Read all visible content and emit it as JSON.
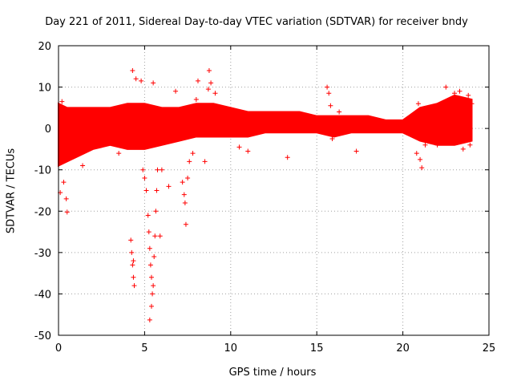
{
  "chart_data": {
    "type": "scatter",
    "title": "Day 221 of 2011, Sidereal Day-to-day VTEC variation (SDTVAR) for receiver bndy",
    "xlabel": "GPS time / hours",
    "ylabel": "SDTVAR / TECUs",
    "xlim": [
      0,
      25
    ],
    "ylim": [
      -50,
      20
    ],
    "xticks": [
      "0",
      "5",
      "10",
      "15",
      "20",
      "25"
    ],
    "yticks": [
      "20",
      "10",
      "0",
      "-10",
      "-20",
      "-30",
      "-40",
      "-50"
    ],
    "grid": true,
    "marker": "+",
    "color": "#ff0000",
    "series": [
      {
        "name": "SDTVAR",
        "band": [
          {
            "x": 0.0,
            "lo": -9,
            "hi": 6
          },
          {
            "x": 0.5,
            "lo": -8,
            "hi": 5
          },
          {
            "x": 1.0,
            "lo": -7,
            "hi": 5
          },
          {
            "x": 2.0,
            "lo": -5,
            "hi": 5
          },
          {
            "x": 3.0,
            "lo": -4,
            "hi": 5
          },
          {
            "x": 4.0,
            "lo": -5,
            "hi": 6
          },
          {
            "x": 5.0,
            "lo": -5,
            "hi": 6
          },
          {
            "x": 6.0,
            "lo": -4,
            "hi": 5
          },
          {
            "x": 7.0,
            "lo": -3,
            "hi": 5
          },
          {
            "x": 8.0,
            "lo": -2,
            "hi": 6
          },
          {
            "x": 9.0,
            "lo": -2,
            "hi": 6
          },
          {
            "x": 10.0,
            "lo": -2,
            "hi": 5
          },
          {
            "x": 11.0,
            "lo": -2,
            "hi": 4
          },
          {
            "x": 12.0,
            "lo": -1,
            "hi": 4
          },
          {
            "x": 13.0,
            "lo": -1,
            "hi": 4
          },
          {
            "x": 14.0,
            "lo": -1,
            "hi": 4
          },
          {
            "x": 15.0,
            "lo": -1,
            "hi": 3
          },
          {
            "x": 16.0,
            "lo": -2,
            "hi": 3
          },
          {
            "x": 17.0,
            "lo": -1,
            "hi": 3
          },
          {
            "x": 18.0,
            "lo": -1,
            "hi": 3
          },
          {
            "x": 19.0,
            "lo": -1,
            "hi": 2
          },
          {
            "x": 20.0,
            "lo": -1,
            "hi": 2
          },
          {
            "x": 21.0,
            "lo": -3,
            "hi": 5
          },
          {
            "x": 22.0,
            "lo": -4,
            "hi": 6
          },
          {
            "x": 23.0,
            "lo": -4,
            "hi": 8
          },
          {
            "x": 24.0,
            "lo": -3,
            "hi": 7
          }
        ],
        "points": [
          {
            "x": 0.1,
            "y": -15.5
          },
          {
            "x": 0.3,
            "y": -13
          },
          {
            "x": 0.5,
            "y": -20.2
          },
          {
            "x": 0.45,
            "y": -17
          },
          {
            "x": 0.2,
            "y": 6.5
          },
          {
            "x": 1.4,
            "y": -9
          },
          {
            "x": 3.5,
            "y": -6
          },
          {
            "x": 4.3,
            "y": 14
          },
          {
            "x": 4.5,
            "y": 12
          },
          {
            "x": 4.2,
            "y": -27
          },
          {
            "x": 4.25,
            "y": -30
          },
          {
            "x": 4.3,
            "y": -33
          },
          {
            "x": 4.35,
            "y": -36
          },
          {
            "x": 4.4,
            "y": -38
          },
          {
            "x": 4.35,
            "y": -32
          },
          {
            "x": 4.8,
            "y": 11.5
          },
          {
            "x": 4.9,
            "y": -10
          },
          {
            "x": 5.0,
            "y": -12
          },
          {
            "x": 5.1,
            "y": -15
          },
          {
            "x": 5.2,
            "y": -21
          },
          {
            "x": 5.25,
            "y": -25
          },
          {
            "x": 5.3,
            "y": -29
          },
          {
            "x": 5.35,
            "y": -33
          },
          {
            "x": 5.4,
            "y": -36
          },
          {
            "x": 5.45,
            "y": -40
          },
          {
            "x": 5.4,
            "y": -43
          },
          {
            "x": 5.3,
            "y": -46.3
          },
          {
            "x": 5.5,
            "y": -38
          },
          {
            "x": 5.55,
            "y": -31
          },
          {
            "x": 5.6,
            "y": -26
          },
          {
            "x": 5.65,
            "y": -20
          },
          {
            "x": 5.7,
            "y": -15
          },
          {
            "x": 5.75,
            "y": -10
          },
          {
            "x": 5.5,
            "y": 11
          },
          {
            "x": 5.9,
            "y": -26
          },
          {
            "x": 6.0,
            "y": -10
          },
          {
            "x": 6.4,
            "y": -14
          },
          {
            "x": 6.8,
            "y": 9
          },
          {
            "x": 7.2,
            "y": -13
          },
          {
            "x": 7.3,
            "y": -16
          },
          {
            "x": 7.35,
            "y": -18
          },
          {
            "x": 7.4,
            "y": -23.2
          },
          {
            "x": 7.5,
            "y": -12
          },
          {
            "x": 7.6,
            "y": -8
          },
          {
            "x": 7.8,
            "y": -6
          },
          {
            "x": 8.1,
            "y": 11.5
          },
          {
            "x": 8.0,
            "y": 7
          },
          {
            "x": 8.5,
            "y": -8
          },
          {
            "x": 8.7,
            "y": 9.5
          },
          {
            "x": 8.75,
            "y": 14
          },
          {
            "x": 8.85,
            "y": 11
          },
          {
            "x": 9.1,
            "y": 8.5
          },
          {
            "x": 10.5,
            "y": -4.5
          },
          {
            "x": 11.0,
            "y": -5.5
          },
          {
            "x": 13.3,
            "y": -7
          },
          {
            "x": 15.6,
            "y": 10
          },
          {
            "x": 15.7,
            "y": 8.5
          },
          {
            "x": 15.8,
            "y": 5.5
          },
          {
            "x": 15.9,
            "y": -2.5
          },
          {
            "x": 17.3,
            "y": -5.5
          },
          {
            "x": 16.3,
            "y": 4
          },
          {
            "x": 20.8,
            "y": -6
          },
          {
            "x": 21.0,
            "y": -7.5
          },
          {
            "x": 21.1,
            "y": -9.5
          },
          {
            "x": 21.3,
            "y": -4
          },
          {
            "x": 20.9,
            "y": 6
          },
          {
            "x": 21.5,
            "y": 4.5
          },
          {
            "x": 22.0,
            "y": -4
          },
          {
            "x": 22.5,
            "y": 10
          },
          {
            "x": 23.0,
            "y": 8.5
          },
          {
            "x": 23.3,
            "y": 9
          },
          {
            "x": 23.5,
            "y": -5
          },
          {
            "x": 23.8,
            "y": 8
          },
          {
            "x": 23.9,
            "y": -4
          },
          {
            "x": 24.0,
            "y": 6
          }
        ]
      }
    ]
  }
}
